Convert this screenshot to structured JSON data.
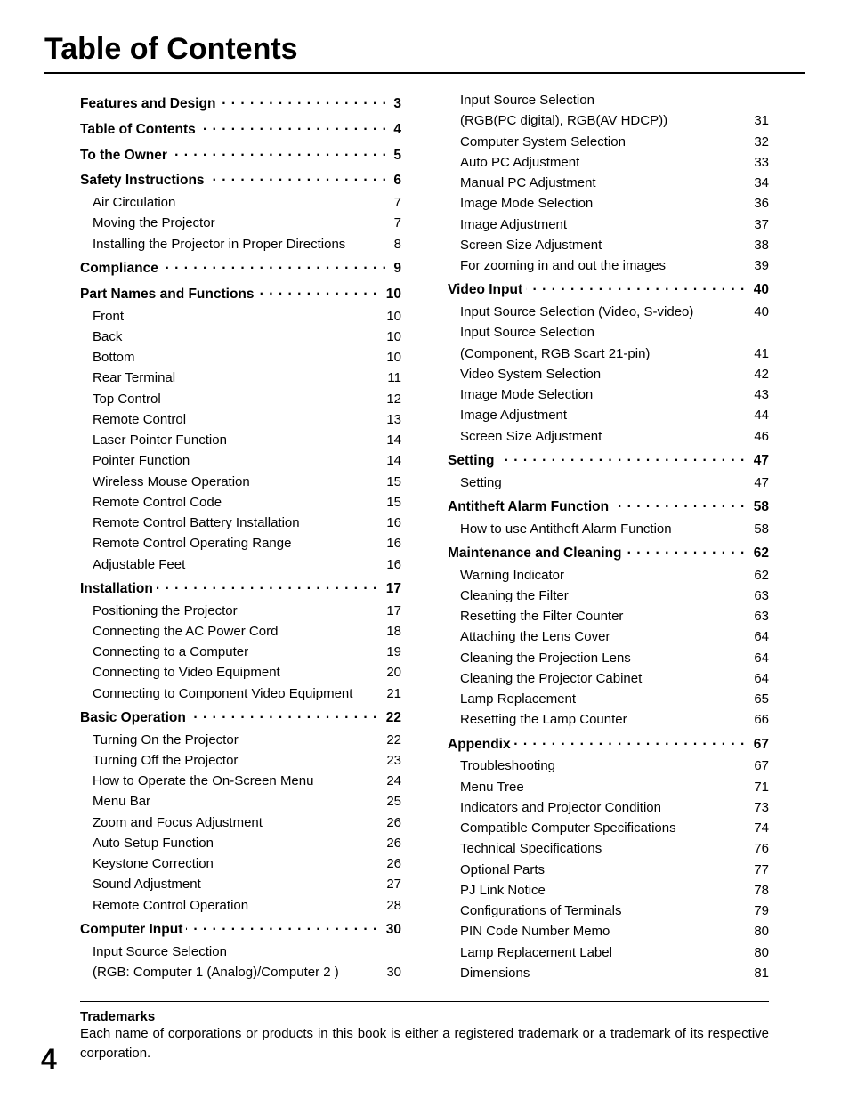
{
  "title": "Table of Contents",
  "pageNumber": "4",
  "trademark": {
    "heading": "Trademarks",
    "body": "Each name of corporations or products in this book is either a registered trademark or a trademark of its respective corporation."
  },
  "columns": [
    [
      {
        "type": "section",
        "label": "Features and Design",
        "page": "3"
      },
      {
        "type": "section",
        "label": "Table of Contents",
        "page": "4"
      },
      {
        "type": "section",
        "label": "To the Owner",
        "page": "5"
      },
      {
        "type": "section",
        "label": "Safety Instructions",
        "page": "6"
      },
      {
        "type": "sub",
        "label": "Air Circulation",
        "page": "7"
      },
      {
        "type": "sub",
        "label": "Moving the Projector",
        "page": "7"
      },
      {
        "type": "sub",
        "label": "Installing the Projector in Proper Directions",
        "page": "8"
      },
      {
        "type": "section",
        "label": "Compliance",
        "page": "9"
      },
      {
        "type": "section",
        "label": "Part Names and Functions",
        "page": "10"
      },
      {
        "type": "sub",
        "label": "Front",
        "page": "10"
      },
      {
        "type": "sub",
        "label": "Back",
        "page": "10"
      },
      {
        "type": "sub",
        "label": "Bottom",
        "page": "10"
      },
      {
        "type": "sub",
        "label": "Rear Terminal",
        "page": "11"
      },
      {
        "type": "sub",
        "label": "Top Control",
        "page": "12"
      },
      {
        "type": "sub",
        "label": "Remote Control",
        "page": "13"
      },
      {
        "type": "sub",
        "label": "Laser Pointer Function",
        "page": "14"
      },
      {
        "type": "sub",
        "label": "Pointer Function",
        "page": "14"
      },
      {
        "type": "sub",
        "label": "Wireless Mouse Operation",
        "page": "15"
      },
      {
        "type": "sub",
        "label": "Remote Control Code",
        "page": "15"
      },
      {
        "type": "sub",
        "label": "Remote Control Battery Installation",
        "page": "16"
      },
      {
        "type": "sub",
        "label": "Remote Control Operating Range",
        "page": "16"
      },
      {
        "type": "sub",
        "label": "Adjustable Feet",
        "page": "16"
      },
      {
        "type": "section",
        "label": "Installation",
        "page": "17"
      },
      {
        "type": "sub",
        "label": "Positioning the Projector",
        "page": "17"
      },
      {
        "type": "sub",
        "label": "Connecting the AC Power Cord",
        "page": "18"
      },
      {
        "type": "sub",
        "label": "Connecting to a Computer",
        "page": "19"
      },
      {
        "type": "sub",
        "label": "Connecting to Video Equipment",
        "page": "20"
      },
      {
        "type": "sub",
        "label": "Connecting to Component Video Equipment",
        "page": "21"
      },
      {
        "type": "section",
        "label": "Basic Operation",
        "page": "22"
      },
      {
        "type": "sub",
        "label": "Turning On the Projector",
        "page": "22"
      },
      {
        "type": "sub",
        "label": "Turning Off the Projector",
        "page": "23"
      },
      {
        "type": "sub",
        "label": "How to Operate the On-Screen Menu",
        "page": "24"
      },
      {
        "type": "sub",
        "label": "Menu Bar",
        "page": "25"
      },
      {
        "type": "sub",
        "label": "Zoom and Focus Adjustment",
        "page": "26"
      },
      {
        "type": "sub",
        "label": "Auto Setup Function",
        "page": "26"
      },
      {
        "type": "sub",
        "label": "Keystone Correction",
        "page": "26"
      },
      {
        "type": "sub",
        "label": "Sound Adjustment",
        "page": "27"
      },
      {
        "type": "sub",
        "label": "Remote Control Operation",
        "page": "28"
      },
      {
        "type": "section",
        "label": "Computer Input",
        "page": "30"
      },
      {
        "type": "sub",
        "label": "Input Source Selection",
        "page": "",
        "nopage": true
      },
      {
        "type": "sub",
        "label": "(RGB: Computer 1 (Analog)/Computer 2 )",
        "page": "30"
      }
    ],
    [
      {
        "type": "sub",
        "label": "Input Source Selection",
        "page": "",
        "nopage": true
      },
      {
        "type": "sub",
        "label": "(RGB(PC digital), RGB(AV HDCP))",
        "page": "31"
      },
      {
        "type": "sub",
        "label": "Computer System Selection",
        "page": "32"
      },
      {
        "type": "sub",
        "label": "Auto PC Adjustment",
        "page": "33"
      },
      {
        "type": "sub",
        "label": "Manual PC Adjustment",
        "page": "34"
      },
      {
        "type": "sub",
        "label": "Image Mode Selection",
        "page": "36"
      },
      {
        "type": "sub",
        "label": "Image Adjustment",
        "page": "37"
      },
      {
        "type": "sub",
        "label": "Screen Size Adjustment",
        "page": "38"
      },
      {
        "type": "sub",
        "label": "For zooming in and out the images",
        "page": "39"
      },
      {
        "type": "section",
        "label": "Video Input",
        "page": "40"
      },
      {
        "type": "sub",
        "label": "Input Source Selection (Video, S-video)",
        "page": "40"
      },
      {
        "type": "sub",
        "label": "Input Source Selection",
        "page": "",
        "nopage": true
      },
      {
        "type": "sub",
        "label": "(Component, RGB Scart 21-pin)",
        "page": "41"
      },
      {
        "type": "sub",
        "label": "Video System Selection",
        "page": "42"
      },
      {
        "type": "sub",
        "label": "Image Mode Selection",
        "page": "43"
      },
      {
        "type": "sub",
        "label": "Image Adjustment",
        "page": "44"
      },
      {
        "type": "sub",
        "label": "Screen Size Adjustment",
        "page": "46"
      },
      {
        "type": "section",
        "label": "Setting",
        "page": "47"
      },
      {
        "type": "sub",
        "label": "Setting",
        "page": "47"
      },
      {
        "type": "section",
        "label": "Antitheft Alarm Function",
        "page": "58"
      },
      {
        "type": "sub",
        "label": "How to use Antitheft Alarm Function",
        "page": "58"
      },
      {
        "type": "section",
        "label": "Maintenance and Cleaning",
        "page": "62"
      },
      {
        "type": "sub",
        "label": "Warning Indicator",
        "page": "62"
      },
      {
        "type": "sub",
        "label": "Cleaning the Filter",
        "page": "63"
      },
      {
        "type": "sub",
        "label": "Resetting the Filter Counter",
        "page": "63"
      },
      {
        "type": "sub",
        "label": "Attaching the Lens Cover",
        "page": "64"
      },
      {
        "type": "sub",
        "label": "Cleaning the Projection Lens",
        "page": "64"
      },
      {
        "type": "sub",
        "label": "Cleaning the Projector Cabinet",
        "page": "64"
      },
      {
        "type": "sub",
        "label": "Lamp Replacement",
        "page": "65"
      },
      {
        "type": "sub",
        "label": "Resetting the Lamp Counter",
        "page": "66"
      },
      {
        "type": "section",
        "label": "Appendix",
        "page": "67"
      },
      {
        "type": "sub",
        "label": "Troubleshooting",
        "page": "67"
      },
      {
        "type": "sub",
        "label": "Menu Tree",
        "page": "71"
      },
      {
        "type": "sub",
        "label": "Indicators and Projector Condition",
        "page": "73"
      },
      {
        "type": "sub",
        "label": "Compatible Computer Specifications",
        "page": "74"
      },
      {
        "type": "sub",
        "label": "Technical Specifications",
        "page": "76"
      },
      {
        "type": "sub",
        "label": "Optional Parts",
        "page": "77"
      },
      {
        "type": "sub",
        "label": "PJ Link Notice",
        "page": "78"
      },
      {
        "type": "sub",
        "label": "Configurations of Terminals",
        "page": "79"
      },
      {
        "type": "sub",
        "label": "PIN Code Number Memo",
        "page": "80"
      },
      {
        "type": "sub",
        "label": "Lamp Replacement Label",
        "page": "80"
      },
      {
        "type": "sub",
        "label": "Dimensions",
        "page": "81"
      }
    ]
  ]
}
